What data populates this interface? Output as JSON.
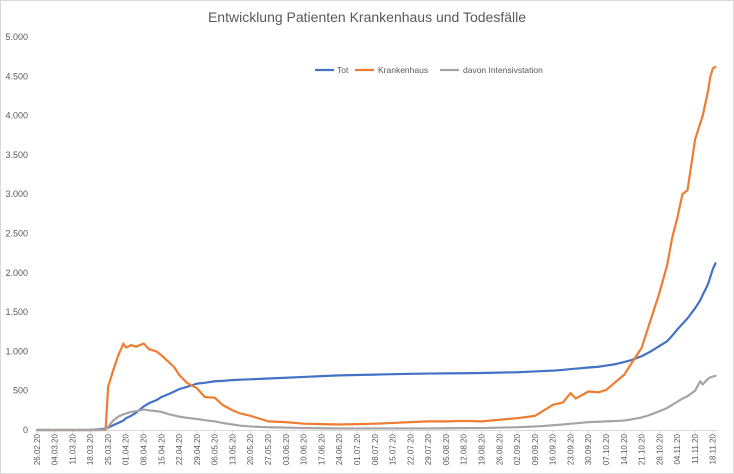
{
  "chart_data": {
    "type": "line",
    "title": "Entwicklung Patienten Krankenhaus und Todesfälle",
    "xlabel": "",
    "ylabel": "",
    "xlim": [
      "26.02.20",
      "20.11.20"
    ],
    "ylim": [
      0,
      5000
    ],
    "grid": false,
    "legend": "top-center",
    "yticks": {
      "values": [
        0,
        500,
        1000,
        1500,
        2000,
        2500,
        3000,
        3500,
        4000,
        4500,
        5000
      ],
      "labels": [
        "0",
        "500",
        "1.000",
        "1.500",
        "2.000",
        "2.500",
        "3.000",
        "3.500",
        "4.000",
        "4.500",
        "5.000"
      ]
    },
    "xticks": [
      "26.02.20",
      "04.03.20",
      "11.03.20",
      "18.03.20",
      "25.03.20",
      "01.04.20",
      "08.04.20",
      "15.04.20",
      "22.04.20",
      "29.04.20",
      "06.05.20",
      "13.05.20",
      "20.05.20",
      "27.05.20",
      "03.06.20",
      "10.06.20",
      "17.06.20",
      "24.06.20",
      "01.07.20",
      "08.07.20",
      "15.07.20",
      "22.07.20",
      "29.07.20",
      "05.08.20",
      "12.08.20",
      "19.08.20",
      "26.08.20",
      "02.09.20",
      "09.09.20",
      "16.09.20",
      "23.09.20",
      "30.09.20",
      "07.10.20",
      "14.10.20",
      "21.10.20",
      "28.10.20",
      "04.11.20",
      "11.11.20",
      "18.11.20"
    ],
    "x": [
      "26.02.20",
      "04.03.20",
      "11.03.20",
      "18.03.20",
      "22.03.20",
      "24.03.20",
      "25.03.20",
      "27.03.20",
      "29.03.20",
      "31.03.20",
      "01.04.20",
      "03.04.20",
      "05.04.20",
      "08.04.20",
      "10.04.20",
      "13.04.20",
      "15.04.20",
      "18.04.20",
      "20.04.20",
      "22.04.20",
      "25.04.20",
      "29.04.20",
      "02.05.20",
      "06.05.20",
      "09.05.20",
      "13.05.20",
      "16.05.20",
      "20.05.20",
      "24.05.20",
      "27.05.20",
      "03.06.20",
      "10.06.20",
      "17.06.20",
      "24.06.20",
      "01.07.20",
      "08.07.20",
      "15.07.20",
      "22.07.20",
      "29.07.20",
      "05.08.20",
      "12.08.20",
      "19.08.20",
      "26.08.20",
      "02.09.20",
      "09.09.20",
      "12.09.20",
      "16.09.20",
      "20.09.20",
      "23.09.20",
      "25.09.20",
      "30.09.20",
      "04.10.20",
      "07.10.20",
      "11.10.20",
      "14.10.20",
      "17.10.20",
      "21.10.20",
      "24.10.20",
      "28.10.20",
      "31.10.20",
      "02.11.20",
      "04.11.20",
      "06.11.20",
      "08.11.20",
      "11.11.20",
      "13.11.20",
      "14.11.20",
      "16.11.20",
      "17.11.20",
      "18.11.20",
      "19.11.20"
    ],
    "series": [
      {
        "name": "Tot",
        "color": "#4472C4",
        "values": [
          0,
          0,
          0,
          0,
          10,
          20,
          30,
          60,
          90,
          120,
          150,
          180,
          220,
          300,
          340,
          380,
          420,
          460,
          490,
          520,
          550,
          590,
          600,
          620,
          625,
          635,
          640,
          645,
          650,
          655,
          665,
          675,
          685,
          695,
          700,
          705,
          710,
          715,
          718,
          720,
          722,
          725,
          730,
          735,
          745,
          750,
          755,
          765,
          775,
          780,
          795,
          805,
          820,
          840,
          865,
          890,
          940,
          990,
          1070,
          1130,
          1200,
          1280,
          1350,
          1420,
          1550,
          1650,
          1720,
          1850,
          1950,
          2050,
          2120
        ]
      },
      {
        "name": "Krankenhaus",
        "color": "#ED7D31",
        "values": [
          0,
          0,
          0,
          0,
          0,
          0,
          550,
          760,
          950,
          1100,
          1050,
          1080,
          1060,
          1100,
          1030,
          1000,
          950,
          860,
          800,
          700,
          600,
          530,
          420,
          410,
          320,
          250,
          210,
          180,
          140,
          110,
          100,
          80,
          75,
          70,
          75,
          80,
          90,
          100,
          110,
          110,
          115,
          110,
          130,
          150,
          180,
          240,
          320,
          350,
          470,
          400,
          490,
          480,
          510,
          620,
          700,
          850,
          1050,
          1350,
          1750,
          2100,
          2450,
          2700,
          3000,
          3050,
          3700,
          3900,
          4000,
          4300,
          4500,
          4600,
          4620
        ]
      },
      {
        "name": "davon Intensivstation",
        "color": "#A5A5A5",
        "values": [
          0,
          0,
          0,
          0,
          0,
          10,
          40,
          120,
          170,
          200,
          210,
          230,
          240,
          260,
          250,
          240,
          230,
          200,
          185,
          170,
          155,
          140,
          125,
          110,
          90,
          70,
          55,
          45,
          38,
          35,
          30,
          25,
          22,
          20,
          20,
          20,
          20,
          20,
          20,
          22,
          25,
          25,
          30,
          35,
          45,
          50,
          60,
          70,
          80,
          85,
          100,
          105,
          110,
          115,
          120,
          135,
          160,
          190,
          240,
          280,
          320,
          360,
          400,
          430,
          500,
          620,
          580,
          650,
          670,
          680,
          690
        ]
      }
    ]
  }
}
